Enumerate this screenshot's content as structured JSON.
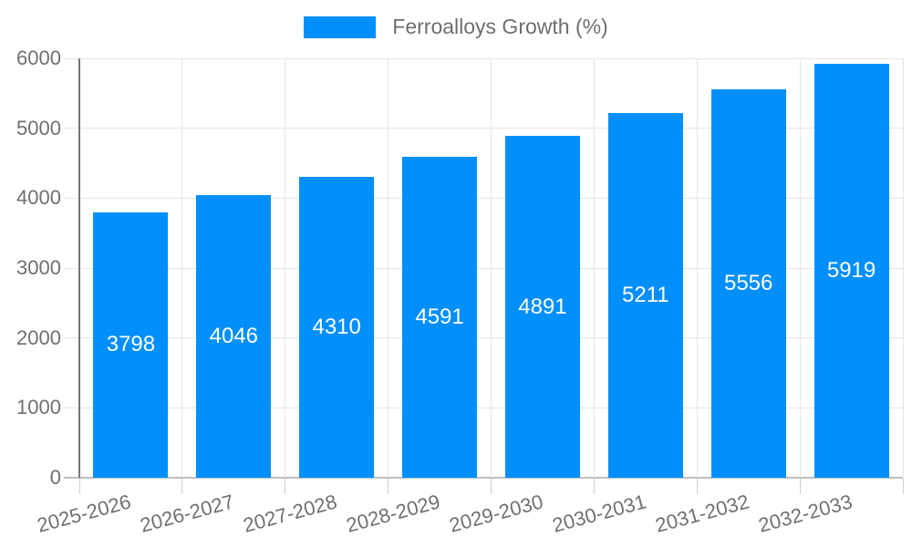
{
  "chart_data": {
    "type": "bar",
    "legend": "Ferroalloys Growth (%)",
    "legend_position": "top",
    "categories": [
      "2025-2026",
      "2026-2027",
      "2027-2028",
      "2028-2029",
      "2029-2030",
      "2030-2031",
      "2031-2032",
      "2032-2033"
    ],
    "values": [
      3798,
      4046,
      4310,
      4591,
      4891,
      5211,
      5556,
      5919
    ],
    "value_labels": [
      "3798",
      "4046",
      "4310",
      "4591",
      "4891",
      "5211",
      "5556",
      "5919"
    ],
    "ylim": [
      0,
      6000
    ],
    "ytick_step": 1000,
    "ytick_labels": [
      "0",
      "1000",
      "2000",
      "3000",
      "4000",
      "5000",
      "6000"
    ],
    "grid": true,
    "xlabel": "",
    "ylabel": "",
    "colors": {
      "bar": "#008FFB",
      "grid": "#e5e5e5",
      "y_axis_line": "#757575",
      "x_axis_line": "#bdbdbd",
      "tick": "#cfcfcf",
      "axis_label": "#707070",
      "value_label": "#ffffff",
      "legend_text": "#6e6e6e",
      "background": "#ffffff"
    }
  }
}
